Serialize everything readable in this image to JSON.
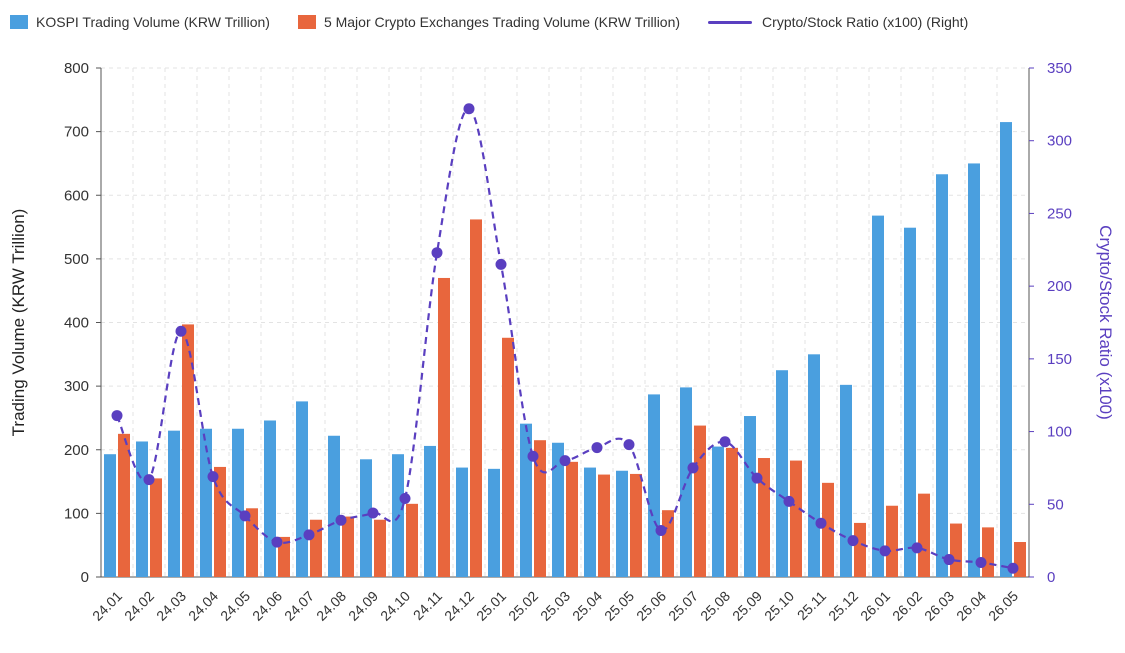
{
  "colors": {
    "kospi": "#4a9fdf",
    "crypto": "#e8663d",
    "ratio": "#5a3fc0",
    "grid": "#e3e3e3",
    "axis": "#555555"
  },
  "legend": {
    "kospi": "KOSPI Trading Volume (KRW Trillion)",
    "crypto": "5 Major Crypto Exchanges Trading Volume (KRW Trillion)",
    "ratio": "Crypto/Stock Ratio (x100) (Right)"
  },
  "chart_data": {
    "type": "bar",
    "categories": [
      "24.01",
      "24.02",
      "24.03",
      "24.04",
      "24.05",
      "24.06",
      "24.07",
      "24.08",
      "24.09",
      "24.10",
      "24.11",
      "24.12",
      "25.01",
      "25.02",
      "25.03",
      "25.04",
      "25.05",
      "25.06",
      "25.07",
      "25.08",
      "25.09",
      "25.10",
      "25.11",
      "25.12",
      "26.01",
      "26.02",
      "26.03",
      "26.04",
      "26.05"
    ],
    "series": [
      {
        "name": "KOSPI Trading Volume (KRW Trillion)",
        "type": "bar",
        "axis": "left",
        "values": [
          193,
          213,
          230,
          233,
          233,
          246,
          276,
          222,
          185,
          193,
          206,
          172,
          170,
          241,
          211,
          172,
          167,
          287,
          298,
          205,
          253,
          325,
          350,
          302,
          568,
          549,
          633,
          650,
          715
        ]
      },
      {
        "name": "5 Major Crypto Exchanges Trading Volume (KRW Trillion)",
        "type": "bar",
        "axis": "left",
        "values": [
          225,
          155,
          397,
          173,
          108,
          63,
          90,
          95,
          90,
          115,
          470,
          562,
          376,
          215,
          181,
          161,
          162,
          105,
          238,
          203,
          187,
          183,
          148,
          85,
          112,
          131,
          84,
          78,
          55
        ]
      },
      {
        "name": "Crypto/Stock Ratio (x100) (Right)",
        "type": "line",
        "axis": "right",
        "values": [
          111,
          67,
          169,
          69,
          42,
          24,
          29,
          39,
          44,
          54,
          223,
          322,
          215,
          83,
          80,
          89,
          91,
          32,
          75,
          93,
          68,
          52,
          37,
          25,
          18,
          20,
          12,
          10,
          6
        ]
      }
    ],
    "xlabel": "",
    "ylabel": "Trading Volume (KRW Trillion)",
    "y2label": "Crypto/Stock Ratio (x100)",
    "ylim": [
      0,
      800
    ],
    "yticks": [
      0,
      100,
      200,
      300,
      400,
      500,
      600,
      700,
      800
    ],
    "y2lim": [
      0,
      350
    ],
    "y2ticks": [
      0,
      50,
      100,
      150,
      200,
      250,
      300,
      350
    ],
    "grid": true,
    "legend_position": "top-left"
  }
}
